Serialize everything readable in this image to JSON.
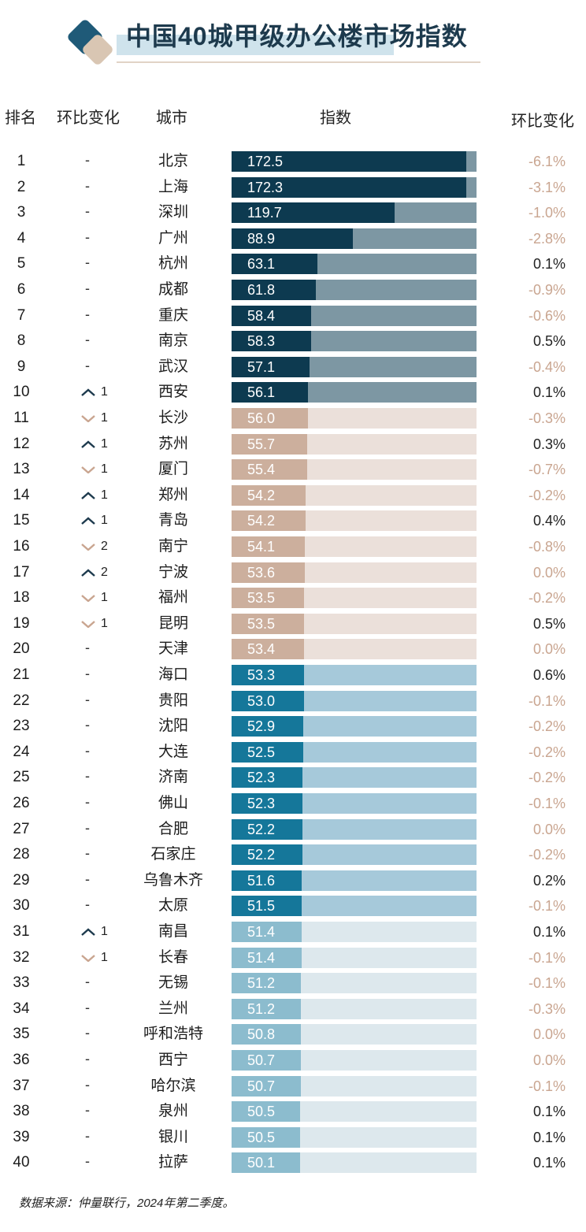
{
  "title": "中国40城甲级办公楼市场指数",
  "headers": {
    "rank": "排名",
    "change": "环比变化",
    "city": "城市",
    "index": "指数",
    "mom": "环比变化"
  },
  "footer": "数据来源：仲量联行，2024年第二季度。",
  "colors": {
    "tier1": [
      "#0d3a50",
      "#7d97a3"
    ],
    "tier2": [
      "#ccaf9d",
      "#ebe0da"
    ],
    "tier3": [
      "#15779a",
      "#a6c9da"
    ],
    "tier4": [
      "#8cbcce",
      "#dde8ed"
    ],
    "negative": "#c9a590",
    "positive": "#222222"
  },
  "chart_data": {
    "type": "bar",
    "title": "中国40城甲级办公楼市场指数",
    "columns": [
      "排名",
      "环比变化",
      "城市",
      "指数",
      "环比变化"
    ],
    "rows": [
      {
        "rank": "1",
        "rank_change": "-",
        "city": "北京",
        "index": "172.5",
        "mom": "-6.1%"
      },
      {
        "rank": "2",
        "rank_change": "-",
        "city": "上海",
        "index": "172.3",
        "mom": "-3.1%"
      },
      {
        "rank": "3",
        "rank_change": "-",
        "city": "深圳",
        "index": "119.7",
        "mom": "-1.0%"
      },
      {
        "rank": "4",
        "rank_change": "-",
        "city": "广州",
        "index": "88.9",
        "mom": "-2.8%"
      },
      {
        "rank": "5",
        "rank_change": "-",
        "city": "杭州",
        "index": "63.1",
        "mom": "0.1%"
      },
      {
        "rank": "6",
        "rank_change": "-",
        "city": "成都",
        "index": "61.8",
        "mom": "-0.9%"
      },
      {
        "rank": "7",
        "rank_change": "-",
        "city": "重庆",
        "index": "58.4",
        "mom": "-0.6%"
      },
      {
        "rank": "8",
        "rank_change": "-",
        "city": "南京",
        "index": "58.3",
        "mom": "0.5%"
      },
      {
        "rank": "9",
        "rank_change": "-",
        "city": "武汉",
        "index": "57.1",
        "mom": "-0.4%"
      },
      {
        "rank": "10",
        "rank_change": "up 1",
        "city": "西安",
        "index": "56.1",
        "mom": "0.1%"
      },
      {
        "rank": "11",
        "rank_change": "down 1",
        "city": "长沙",
        "index": "56.0",
        "mom": "-0.3%"
      },
      {
        "rank": "12",
        "rank_change": "up 1",
        "city": "苏州",
        "index": "55.7",
        "mom": "0.3%"
      },
      {
        "rank": "13",
        "rank_change": "down 1",
        "city": "厦门",
        "index": "55.4",
        "mom": "-0.7%"
      },
      {
        "rank": "14",
        "rank_change": "up 1",
        "city": "郑州",
        "index": "54.2",
        "mom": "-0.2%"
      },
      {
        "rank": "15",
        "rank_change": "up 1",
        "city": "青岛",
        "index": "54.2",
        "mom": "0.4%"
      },
      {
        "rank": "16",
        "rank_change": "down 2",
        "city": "南宁",
        "index": "54.1",
        "mom": "-0.8%"
      },
      {
        "rank": "17",
        "rank_change": "up 2",
        "city": "宁波",
        "index": "53.6",
        "mom": "0.0%"
      },
      {
        "rank": "18",
        "rank_change": "down 1",
        "city": "福州",
        "index": "53.5",
        "mom": "-0.2%"
      },
      {
        "rank": "19",
        "rank_change": "down 1",
        "city": "昆明",
        "index": "53.5",
        "mom": "0.5%"
      },
      {
        "rank": "20",
        "rank_change": "-",
        "city": "天津",
        "index": "53.4",
        "mom": "0.0%"
      },
      {
        "rank": "21",
        "rank_change": "-",
        "city": "海口",
        "index": "53.3",
        "mom": "0.6%"
      },
      {
        "rank": "22",
        "rank_change": "-",
        "city": "贵阳",
        "index": "53.0",
        "mom": "-0.1%"
      },
      {
        "rank": "23",
        "rank_change": "-",
        "city": "沈阳",
        "index": "52.9",
        "mom": "-0.2%"
      },
      {
        "rank": "24",
        "rank_change": "-",
        "city": "大连",
        "index": "52.5",
        "mom": "-0.2%"
      },
      {
        "rank": "25",
        "rank_change": "-",
        "city": "济南",
        "index": "52.3",
        "mom": "-0.2%"
      },
      {
        "rank": "26",
        "rank_change": "-",
        "city": "佛山",
        "index": "52.3",
        "mom": "-0.1%"
      },
      {
        "rank": "27",
        "rank_change": "-",
        "city": "合肥",
        "index": "52.2",
        "mom": "0.0%"
      },
      {
        "rank": "28",
        "rank_change": "-",
        "city": "石家庄",
        "index": "52.2",
        "mom": "-0.2%"
      },
      {
        "rank": "29",
        "rank_change": "-",
        "city": "乌鲁木齐",
        "index": "51.6",
        "mom": "0.2%"
      },
      {
        "rank": "30",
        "rank_change": "-",
        "city": "太原",
        "index": "51.5",
        "mom": "-0.1%"
      },
      {
        "rank": "31",
        "rank_change": "up 1",
        "city": "南昌",
        "index": "51.4",
        "mom": "0.1%"
      },
      {
        "rank": "32",
        "rank_change": "down 1",
        "city": "长春",
        "index": "51.4",
        "mom": "-0.1%"
      },
      {
        "rank": "33",
        "rank_change": "-",
        "city": "无锡",
        "index": "51.2",
        "mom": "-0.1%"
      },
      {
        "rank": "34",
        "rank_change": "-",
        "city": "兰州",
        "index": "51.2",
        "mom": "-0.3%"
      },
      {
        "rank": "35",
        "rank_change": "-",
        "city": "呼和浩特",
        "index": "50.8",
        "mom": "0.0%"
      },
      {
        "rank": "36",
        "rank_change": "-",
        "city": "西宁",
        "index": "50.7",
        "mom": "0.0%"
      },
      {
        "rank": "37",
        "rank_change": "-",
        "city": "哈尔滨",
        "index": "50.7",
        "mom": "-0.1%"
      },
      {
        "rank": "38",
        "rank_change": "-",
        "city": "泉州",
        "index": "50.5",
        "mom": "0.1%"
      },
      {
        "rank": "39",
        "rank_change": "-",
        "city": "银川",
        "index": "50.5",
        "mom": "0.1%"
      },
      {
        "rank": "40",
        "rank_change": "-",
        "city": "拉萨",
        "index": "50.1",
        "mom": "0.1%"
      }
    ]
  }
}
